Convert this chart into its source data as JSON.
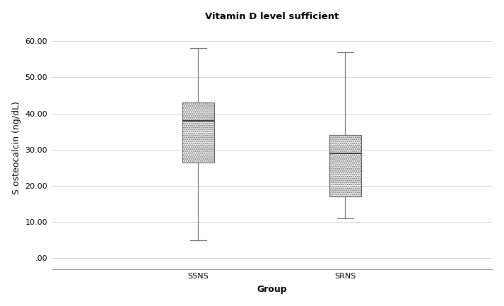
{
  "title": "Vitamin D level sufficient",
  "xlabel": "Group",
  "ylabel": "S.osteocalcin (ng/dL)",
  "categories": [
    "SSNS",
    "SRNS"
  ],
  "xlim": [
    0.0,
    3.0
  ],
  "ylim": [
    -3,
    64
  ],
  "yticks": [
    0.0,
    10.0,
    20.0,
    30.0,
    40.0,
    50.0,
    60.0
  ],
  "ytick_labels": [
    ".00",
    "10.00",
    "20.00",
    "30.00",
    "40.00",
    "50.00",
    "60.00"
  ],
  "boxes": [
    {
      "label": "SSNS",
      "x": 1.0,
      "whislo": 5.0,
      "q1": 26.5,
      "med": 38.0,
      "q3": 43.0,
      "whishi": 58.0
    },
    {
      "label": "SRNS",
      "x": 2.0,
      "whislo": 11.0,
      "q1": 17.0,
      "med": 29.0,
      "q3": 34.0,
      "whishi": 57.0
    }
  ],
  "box_width": 0.22,
  "box_facecolor": "#f5f5f5",
  "box_edgecolor": "#666666",
  "median_color": "#222222",
  "whisker_color": "#666666",
  "cap_color": "#666666",
  "background_color": "#ffffff",
  "grid_color": "#d0d0d0",
  "title_fontsize": 9.5,
  "label_fontsize": 9,
  "tick_fontsize": 8
}
